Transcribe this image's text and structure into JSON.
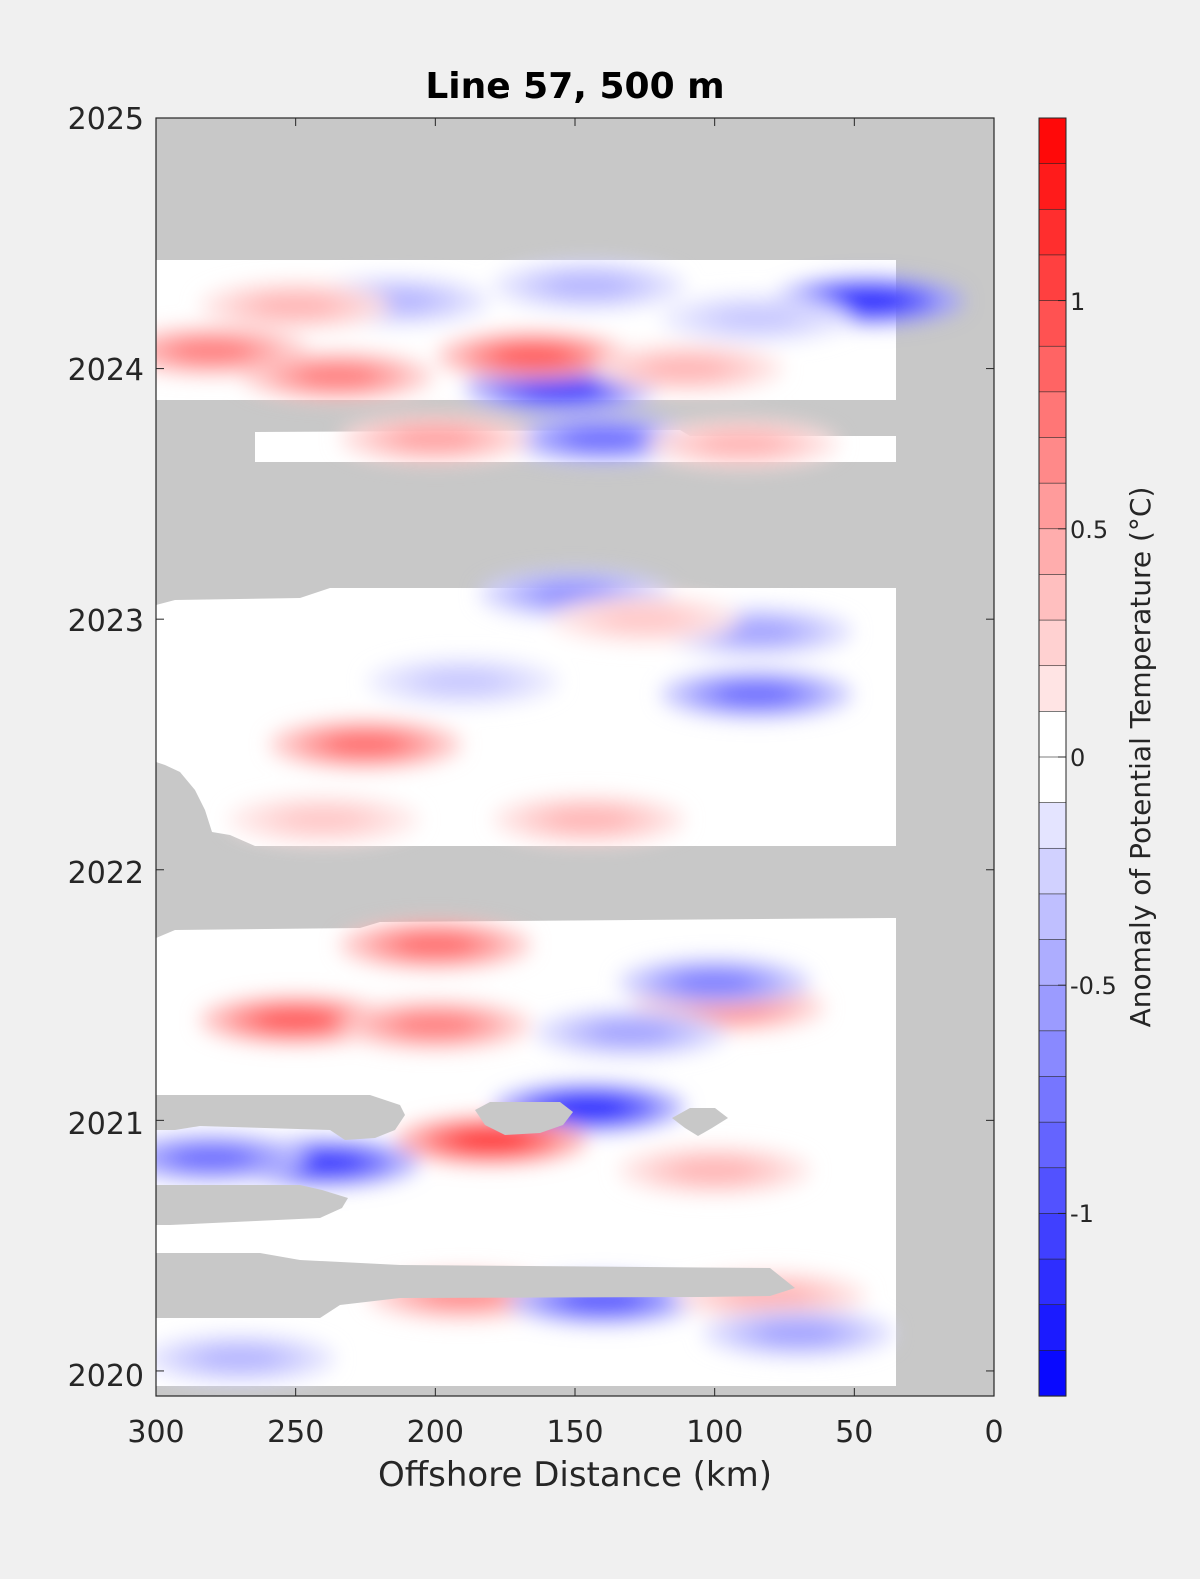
{
  "chart_data": {
    "type": "heatmap",
    "title": "Line 57, 500 m",
    "xlabel": "Offshore Distance (km)",
    "x_ticks": [
      "300",
      "250",
      "200",
      "150",
      "100",
      "50",
      "0"
    ],
    "xlim": [
      300,
      0
    ],
    "x_reversed": true,
    "ylabel": "",
    "y_ticks": [
      "2020",
      "2021",
      "2022",
      "2023",
      "2024",
      "2025"
    ],
    "ylim": [
      2019.9,
      2025
    ],
    "colorbar": {
      "label": "Anomaly of Potential Temperature (°C)",
      "ticks": [
        "1",
        "0.5",
        "0",
        "-0.5",
        "-1"
      ],
      "range": [
        -1.4,
        1.4
      ],
      "step": 0.1,
      "colors": {
        "neg": "#0000ff",
        "zero": "#ffffff",
        "pos": "#ff0000"
      }
    },
    "no_data_color": "#c8c8c8",
    "grid": false,
    "data_coverage": {
      "x_range_km": [
        35,
        300
      ],
      "gaps_years": [
        [
          2024.45,
          2025.0
        ],
        [
          2023.1,
          2023.62
        ],
        [
          2021.8,
          2022.1
        ]
      ]
    },
    "anomaly_features": [
      {
        "x": 45,
        "y": 2024.27,
        "value": -1.2
      },
      {
        "x": 155,
        "y": 2023.92,
        "value": -1.1
      },
      {
        "x": 140,
        "y": 2023.72,
        "value": -0.8
      },
      {
        "x": 215,
        "y": 2024.27,
        "value": -0.4
      },
      {
        "x": 145,
        "y": 2024.33,
        "value": -0.4
      },
      {
        "x": 85,
        "y": 2024.2,
        "value": -0.3
      },
      {
        "x": 280,
        "y": 2024.07,
        "value": 0.7
      },
      {
        "x": 235,
        "y": 2023.97,
        "value": 0.7
      },
      {
        "x": 165,
        "y": 2024.05,
        "value": 0.9
      },
      {
        "x": 110,
        "y": 2024.0,
        "value": 0.4
      },
      {
        "x": 250,
        "y": 2024.25,
        "value": 0.4
      },
      {
        "x": 200,
        "y": 2023.72,
        "value": 0.5
      },
      {
        "x": 90,
        "y": 2023.7,
        "value": 0.4
      },
      {
        "x": 85,
        "y": 2022.7,
        "value": -0.8
      },
      {
        "x": 85,
        "y": 2022.95,
        "value": -0.5
      },
      {
        "x": 150,
        "y": 2023.1,
        "value": -0.6
      },
      {
        "x": 190,
        "y": 2022.75,
        "value": -0.3
      },
      {
        "x": 225,
        "y": 2022.5,
        "value": 0.8
      },
      {
        "x": 145,
        "y": 2022.2,
        "value": 0.4
      },
      {
        "x": 240,
        "y": 2022.2,
        "value": 0.3
      },
      {
        "x": 125,
        "y": 2023.0,
        "value": 0.3
      },
      {
        "x": 200,
        "y": 2021.7,
        "value": 0.8
      },
      {
        "x": 250,
        "y": 2021.4,
        "value": 0.9
      },
      {
        "x": 200,
        "y": 2021.38,
        "value": 0.7
      },
      {
        "x": 95,
        "y": 2021.45,
        "value": 0.6
      },
      {
        "x": 100,
        "y": 2021.55,
        "value": -0.7
      },
      {
        "x": 130,
        "y": 2021.35,
        "value": -0.5
      },
      {
        "x": 145,
        "y": 2021.05,
        "value": -1.2
      },
      {
        "x": 180,
        "y": 2020.92,
        "value": 1.1
      },
      {
        "x": 240,
        "y": 2020.83,
        "value": -1.1
      },
      {
        "x": 280,
        "y": 2020.85,
        "value": -0.8
      },
      {
        "x": 100,
        "y": 2020.8,
        "value": 0.4
      },
      {
        "x": 190,
        "y": 2020.3,
        "value": 0.6
      },
      {
        "x": 140,
        "y": 2020.28,
        "value": -0.9
      },
      {
        "x": 80,
        "y": 2020.3,
        "value": 0.4
      },
      {
        "x": 70,
        "y": 2020.15,
        "value": -0.5
      },
      {
        "x": 270,
        "y": 2020.05,
        "value": -0.4
      }
    ]
  }
}
